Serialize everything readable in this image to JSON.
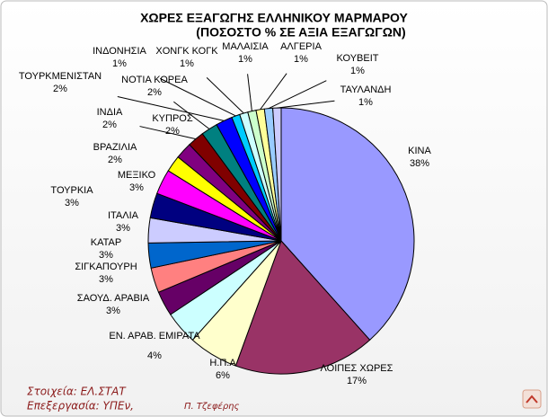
{
  "chart_data": {
    "type": "pie",
    "title": "ΧΩΡΕΣ ΕΞΑΓΩΓΗΣ ΕΛΛΗΝΙΚΟΥ ΜΑΡΜΑΡΟΥ",
    "subtitle": "(ΠΟΣΟΣΤΟ % ΣΕ ΑΞΙΑ ΕΞΑΓΩΓΩΝ)",
    "categories": [
      "ΚΙΝΑ",
      "ΛΟΙΠΕΣ ΧΩΡΕΣ",
      "Η.Π.Α",
      "ΕΝ. ΑΡΑΒ. ΕΜΙΡΑΤΑ",
      "ΣΑΟΥΔ. ΑΡΑΒΙΑ",
      "ΣΙΓΚΑΠΟΥΡΗ",
      "ΚΑΤΑΡ",
      "ΙΤΑΛΙΑ",
      "ΤΟΥΡΚΙΑ",
      "ΜΕΞΙΚΟ",
      "ΒΡΑΖΙΛΙΑ",
      "ΚΥΠΡΟΣ",
      "ΙΝΔΙΑ",
      "ΝΟΤΙΑ ΚΟΡΕΑ",
      "ΤΟΥΡΚΜΕΝΙΣΤΑΝ",
      "ΙΝΔΟΝΗΣΙΑ",
      "ΧΟΝΓΚ ΚΟΓΚ",
      "ΜΑΛΑΙΣΙΑ",
      "ΑΛΓΕΡΙΑ",
      "ΚΟΥΒΕΙΤ",
      "ΤΑΥΛΑΝΔΗ"
    ],
    "values": [
      38,
      17,
      6,
      4,
      3,
      3,
      3,
      3,
      3,
      3,
      2,
      2,
      2,
      2,
      2,
      1,
      1,
      1,
      1,
      1,
      1
    ],
    "value_labels": [
      "38%",
      "17%",
      "6%",
      "4%",
      "3%",
      "3%",
      "3%",
      "3%",
      "3%",
      "3%",
      "2%",
      "2%",
      "2%",
      "2%",
      "2%",
      "1%",
      "1%",
      "1%",
      "1%",
      "1%",
      "1%"
    ],
    "colors": [
      "#9999ff",
      "#993366",
      "#ffffcc",
      "#ccffff",
      "#660066",
      "#ff8080",
      "#0066cc",
      "#ccccff",
      "#000080",
      "#ff00ff",
      "#ffff00",
      "#800080",
      "#800000",
      "#008080",
      "#0000ff",
      "#00ccff",
      "#ccffff",
      "#ccffcc",
      "#ffff99",
      "#99ccff",
      "#ccccff"
    ],
    "source": "Στοιχεία: ΕΛ.ΣΤΑΤ",
    "processing": "Επεξεργασία: ΥΠΕν,",
    "author": "Π. Τζεφέρης"
  }
}
